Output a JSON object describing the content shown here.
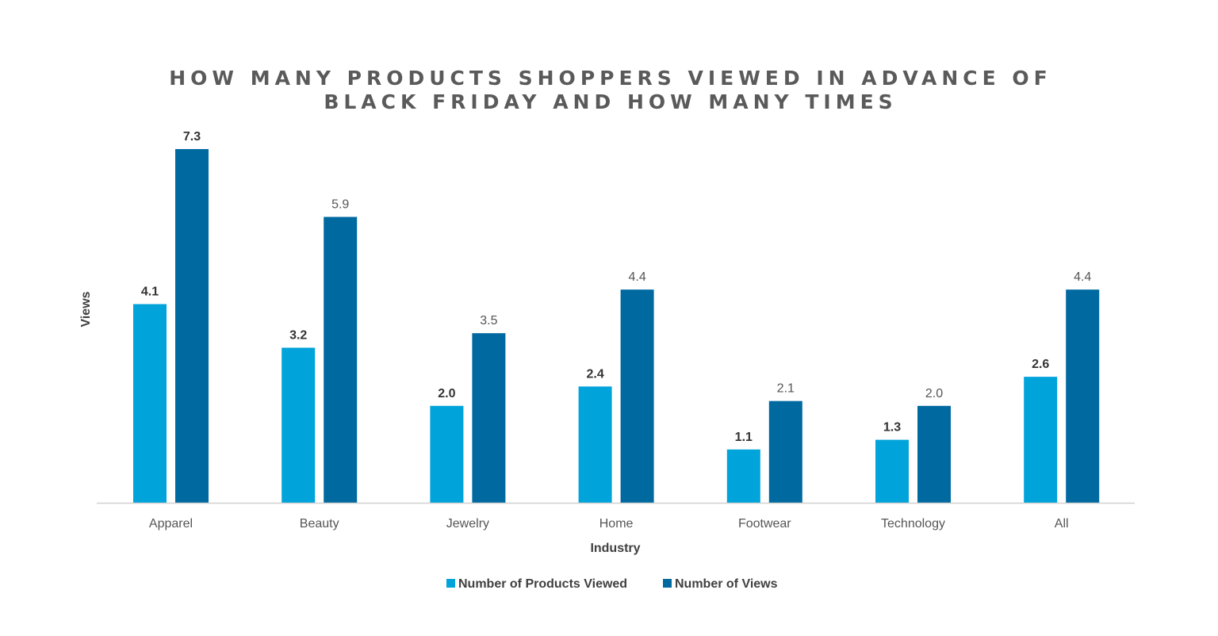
{
  "chart_data": {
    "type": "bar",
    "title": "HOW MANY PRODUCTS SHOPPERS VIEWED IN ADVANCE OF BLACK FRIDAY AND HOW MANY TIMES",
    "xlabel": "Industry",
    "ylabel": "Views",
    "categories": [
      "Apparel",
      "Beauty",
      "Jewelry",
      "Home",
      "Footwear",
      "Technology",
      "All"
    ],
    "series": [
      {
        "name": "Number of Products Viewed",
        "values": [
          4.1,
          3.2,
          2.0,
          2.4,
          1.1,
          1.3,
          2.6
        ],
        "labels": [
          "4.1",
          "3.2",
          "2.0",
          "2.4",
          "1.1",
          "1.3",
          "2.6"
        ],
        "color": "#00a3da",
        "label_bold": true
      },
      {
        "name": "Number of Views",
        "values": [
          7.3,
          5.9,
          3.5,
          4.4,
          2.1,
          2.0,
          4.4
        ],
        "labels": [
          "7.3",
          "5.9",
          "3.5",
          "4.4",
          "2.1",
          "2.0",
          "4.4"
        ],
        "color": "#006aa0",
        "label_bold": false
      }
    ],
    "bold_label_overrides": [
      [
        0,
        1
      ]
    ],
    "ylim": [
      0,
      7.3
    ],
    "grid": false,
    "legend_position": "bottom-center",
    "axis_color": "#d0d0d0",
    "text_color": "#404040"
  }
}
